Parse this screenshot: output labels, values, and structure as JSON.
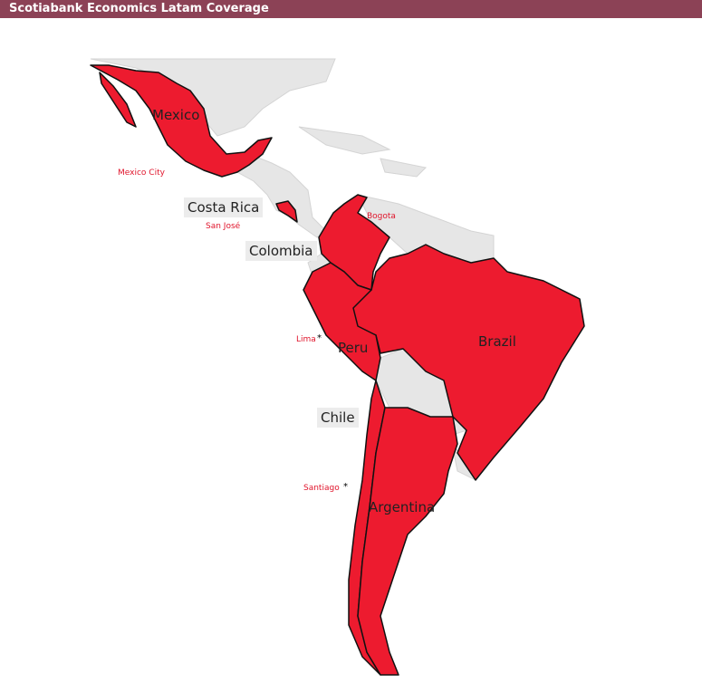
{
  "title": "Scotiabank Economics Latam Coverage",
  "colors": {
    "covered": "#ED1B2F",
    "other_land": "#E6E6E6",
    "title_bar": "#8C4256",
    "city_label": "#E0142B"
  },
  "countries": {
    "mexico": "Mexico",
    "costa_rica": "Costa Rica",
    "colombia": "Colombia",
    "peru": "Peru",
    "brazil": "Brazil",
    "chile": "Chile",
    "argentina": "Argentina"
  },
  "cities": {
    "mexico_city": "Mexico City",
    "san_jose": "San José",
    "bogota": "Bogota",
    "lima": "Lima",
    "santiago": "Santiago"
  },
  "capital_marker": "*"
}
